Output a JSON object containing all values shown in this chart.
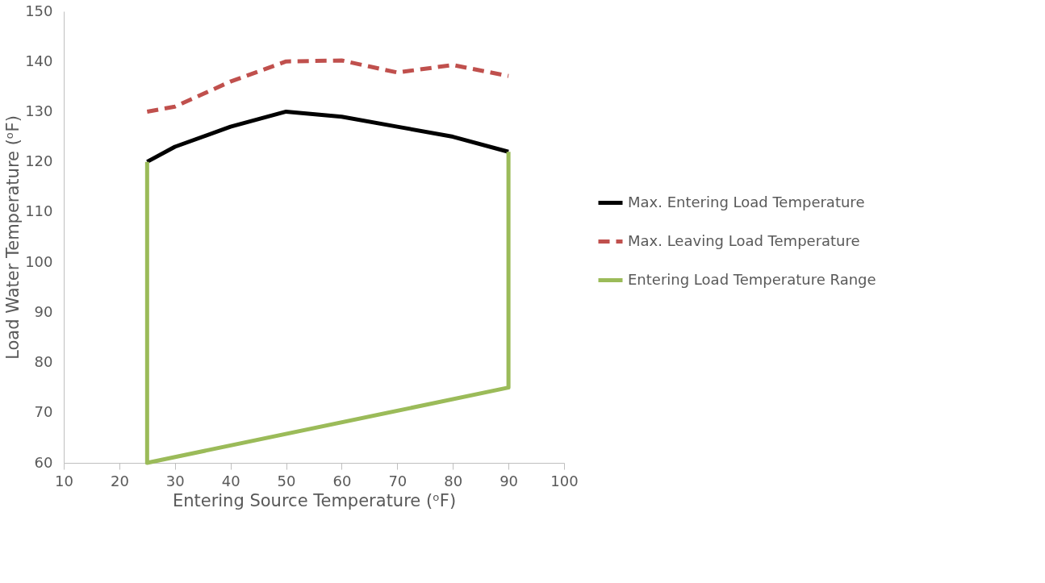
{
  "chart_data": {
    "type": "line",
    "xlabel": "Entering Source Temperature (ᵒF)",
    "ylabel": "Load Water Temperature (ᵒF)",
    "xlim": [
      10,
      100
    ],
    "xticks": [
      10,
      20,
      30,
      40,
      50,
      60,
      70,
      80,
      90,
      100
    ],
    "ylim": [
      60,
      150
    ],
    "yticks": [
      60,
      70,
      80,
      90,
      100,
      110,
      120,
      130,
      140,
      150
    ],
    "grid": false,
    "legend": "right",
    "marker": "none",
    "series": [
      {
        "name": "Max. Entering Load Temperature",
        "color": "#000000",
        "line_style": "solid",
        "x": [
          25,
          30,
          40,
          50,
          60,
          70,
          80,
          90
        ],
        "values": [
          120,
          123,
          127,
          130,
          129,
          127,
          125,
          122
        ]
      },
      {
        "name": "Max. Leaving Load Temperature",
        "color": "#c0504d",
        "line_style": "dashed",
        "x": [
          25,
          30,
          40,
          50,
          60,
          70,
          80,
          90
        ],
        "values": [
          130,
          131,
          136,
          140,
          140.2,
          137.8,
          139.3,
          137.1
        ]
      },
      {
        "name": "Entering Load Temperature Range",
        "color": "#9bbb59",
        "line_style": "solid",
        "x": [
          25,
          25,
          90,
          90
        ],
        "values": [
          120,
          60,
          75,
          122
        ]
      }
    ]
  }
}
